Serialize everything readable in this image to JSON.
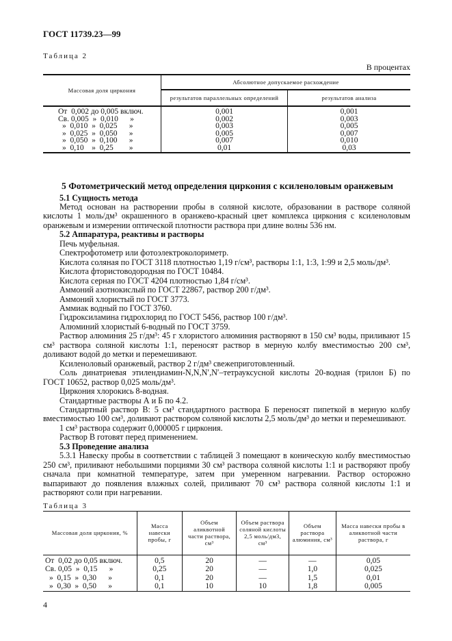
{
  "header": "ГОСТ 11739.23—99",
  "table2": {
    "caption": "Таблица 2",
    "unit_note": "В процентах",
    "col1": "Массовая доля циркония",
    "group": "Абсолютное допускаемое расхождение",
    "col2": "результатов параллельных определений",
    "col3": "результатов анализа",
    "rows": [
      [
        "От  0,002 до 0,005 включ.",
        "0,001",
        "0,001"
      ],
      [
        "Св. 0,005  »  0,010      »",
        "0,002",
        "0,003"
      ],
      [
        "»  0,010  »  0,025      »",
        "0,003",
        "0,005"
      ],
      [
        "»  0,025  »  0,050      »",
        "0,005",
        "0,007"
      ],
      [
        "»  0,050  »  0,100      »",
        "0,007",
        "0,010"
      ],
      [
        "»  0,10    »  0,25        »",
        "0,01",
        "0,03"
      ]
    ]
  },
  "section5": "5 Фотометрический метод определения циркония с ксиленоловым оранжевым",
  "paragraphs": [
    {
      "bold": true,
      "text": "5.1 Сущность метода"
    },
    {
      "text": "Метод основан на растворении пробы в соляной кислоте, образовании в растворе соляной кислоты 1 моль/дм³ окрашенного в оранжево-красный цвет комплекса циркония с ксиленоловым оранжевым и измерении оптической плотности раствора при длине волны 536 нм."
    },
    {
      "bold": true,
      "text": "5.2 Аппаратура, реактивы и растворы"
    },
    {
      "text": "Печь муфельная."
    },
    {
      "text": "Спектрофотометр или фотоэлектроколориметр."
    },
    {
      "text": "Кислота соляная по ГОСТ 3118 плотностью 1,19 г/см³, растворы 1:1, 1:3, 1:99 и 2,5 моль/дм³."
    },
    {
      "text": "Кислота фтористоводородная по ГОСТ 10484."
    },
    {
      "text": "Кислота серная по ГОСТ 4204 плотностью 1,84 г/см³."
    },
    {
      "text": "Аммоний азотнокислый по ГОСТ 22867, раствор 200 г/дм³."
    },
    {
      "text": "Аммоний хлористый по ГОСТ 3773."
    },
    {
      "text": "Аммиак водный по ГОСТ 3760."
    },
    {
      "text": "Гидроксиламина гидрохлорид по ГОСТ 5456, раствор 100 г/дм³."
    },
    {
      "text": "Алюминий хлористый 6-водный по ГОСТ 3759."
    },
    {
      "text": "Раствор алюминия 25 г/дм³: 45 г хлористого алюминия растворяют в 150 см³ воды, приливают 15 см³ раствора соляной кислоты 1:1, переносят раствор в мерную колбу вместимостью 200 см³, доливают водой до метки и перемешивают."
    },
    {
      "text": "Ксиленоловый оранжевый, раствор 2 г/дм³ свежеприготовленный."
    },
    {
      "text": "Соль динатриевая этилендиамин-N,N,N′,N′–тетрауксусной кислоты 20-водная (трилон Б) по ГОСТ 10652, раствор 0,025 моль/дм³."
    },
    {
      "text": "Циркония хлорокись 8-водная."
    },
    {
      "text": "Стандартные растворы А и Б по 4.2."
    },
    {
      "text": "Стандартный раствор В: 5 см³ стандартного раствора Б переносят пипеткой в мерную колбу вместимостью 100 см³, доливают раствором соляной кислоты 2,5 моль/дм³ до метки и перемешивают."
    },
    {
      "text": "1 см³ раствора содержит 0,000005 г циркония."
    },
    {
      "text": "Раствор В готовят перед применением."
    },
    {
      "bold": true,
      "text": "5.3 Проведение анализа"
    },
    {
      "text": "5.3.1  Навеску пробы в соответствии с таблицей 3 помещают в коническую колбу вместимостью 250 см³, приливают небольшими порциями 30 см³ раствора соляной кислоты 1:1 и растворяют пробу сначала при комнатной температуре, затем при умеренном нагревании. Раствор осторожно выпаривают до появления влажных солей, приливают 70 см³ раствора соляной кислоты 1:1 и растворяют соли при нагревании."
    }
  ],
  "table3": {
    "caption": "Таблица 3",
    "headers": [
      "Массовая доля циркония, %",
      "Масса навески пробы, г",
      "Объем аликвотной части раствора, см³",
      "Объем раствора соляной кислоты 2,5 моль/дм3, см³",
      "Объем раствора алюминия, см³",
      "Масса навески пробы в аликвотной части раствора, г"
    ],
    "rows": [
      [
        "От  0,02 до 0,05 включ.",
        "0,5",
        "20",
        "—",
        "—",
        "0,05"
      ],
      [
        "Св. 0,05  »  0,15      »",
        "0,25",
        "20",
        "—",
        "1,0",
        "0,025"
      ],
      [
        "»  0,15  »  0,30      »",
        "0,1",
        "20",
        "—",
        "1,5",
        "0,01"
      ],
      [
        "»  0,30  »  0,50      »",
        "0,1",
        "10",
        "10",
        "1,8",
        "0,005"
      ]
    ]
  },
  "page_number": "4"
}
